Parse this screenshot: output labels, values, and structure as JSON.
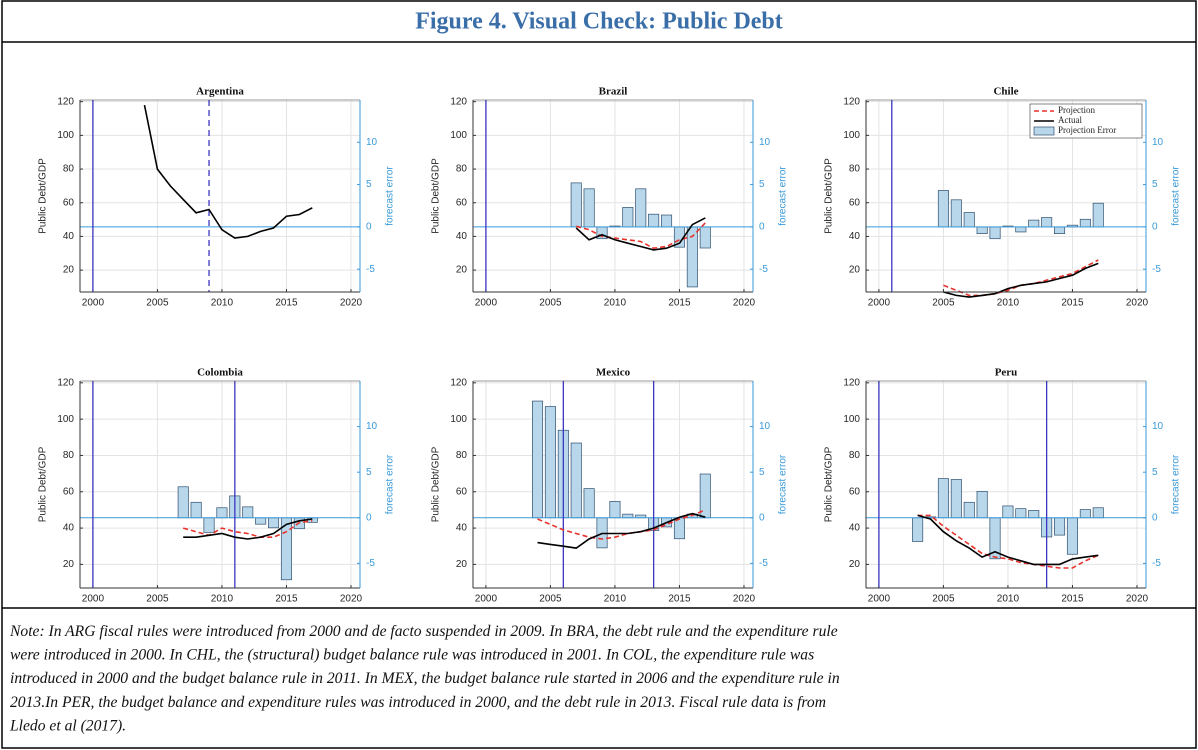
{
  "header": {
    "title": "Figure 4. Visual Check: Public Debt"
  },
  "note": [
    "Note: In ARG fiscal rules were introduced from 2000 and de facto suspended in 2009. In BRA, the debt rule and the expenditure rule",
    "were introduced in 2000. In CHL, the (structural) budget balance rule was introduced in 2001. In COL, the expenditure rule was",
    "introduced in 2000 and the budget balance rule in 2011. In MEX, the budget balance rule started in 2006 and the expenditure rule in",
    "2013.In PER, the budget balance and expenditure rules was introduced in 2000, and the debt rule in 2013. Fiscal rule data is from",
    "Lledo et al (2017)."
  ],
  "chart_data": [
    {
      "type": "line",
      "title": "Argentina",
      "ylabel": "Public Debt/GDP",
      "y2label": "forecast error",
      "xlim": [
        1999,
        2020.7
      ],
      "xticks": [
        2000,
        2005,
        2010,
        2015,
        2020
      ],
      "ylim": [
        7,
        121
      ],
      "yticks": [
        20,
        40,
        60,
        80,
        100,
        120
      ],
      "y2lim": [
        -7.7,
        15
      ],
      "y2ticks": [
        -5,
        0,
        5,
        10
      ],
      "grid": true,
      "vlines": [
        {
          "x": 2000,
          "dashed": false
        },
        {
          "x": 2009,
          "dashed": true
        }
      ],
      "series": [
        {
          "color": "#000000",
          "style": "solid",
          "x": [
            2004,
            2005,
            2006,
            2007,
            2008,
            2009,
            2010,
            2011,
            2012,
            2013,
            2014,
            2015,
            2016,
            2017
          ],
          "values": [
            118,
            80,
            70,
            62,
            54,
            56,
            44,
            39,
            40,
            43,
            45,
            52,
            53,
            57
          ]
        }
      ]
    },
    {
      "type": "line",
      "title": "Brazil",
      "ylabel": "Public Debt/GDP",
      "y2label": "forecast error",
      "xlim": [
        1999,
        2020.7
      ],
      "xticks": [
        2000,
        2005,
        2010,
        2015,
        2020
      ],
      "ylim": [
        7,
        121
      ],
      "yticks": [
        20,
        40,
        60,
        80,
        100,
        120
      ],
      "y2lim": [
        -7.7,
        15
      ],
      "y2ticks": [
        -5,
        0,
        5,
        10
      ],
      "grid": true,
      "vlines": [
        {
          "x": 2000,
          "dashed": false
        }
      ],
      "series": [
        {
          "color": "#e8322c",
          "style": "dashed",
          "x": [
            2007,
            2008,
            2009,
            2010,
            2011,
            2012,
            2013,
            2014,
            2015,
            2016,
            2017
          ],
          "values": [
            46,
            44,
            40,
            39,
            38,
            37,
            33,
            34,
            38,
            40,
            48
          ]
        },
        {
          "color": "#000000",
          "style": "solid",
          "x": [
            2007,
            2008,
            2009,
            2010,
            2011,
            2012,
            2013,
            2014,
            2015,
            2016,
            2017
          ],
          "values": [
            45,
            38,
            41,
            38,
            36,
            34,
            32,
            33,
            36,
            47,
            51
          ]
        },
        {
          "color": "#b8d7ea",
          "style": "bar",
          "axis": "y2",
          "x": [
            2007,
            2008,
            2009,
            2010,
            2011,
            2012,
            2013,
            2014,
            2015,
            2016,
            2017
          ],
          "values": [
            5.2,
            4.5,
            -1.4,
            0.1,
            2.3,
            4.5,
            1.5,
            1.4,
            -2.4,
            -7.1,
            -2.5
          ]
        }
      ]
    },
    {
      "type": "line",
      "title": "Chile",
      "ylabel": "Public Debt/GDP",
      "y2label": "forecast error",
      "xlim": [
        1999,
        2020.7
      ],
      "xticks": [
        2000,
        2005,
        2010,
        2015,
        2020
      ],
      "ylim": [
        7,
        121
      ],
      "yticks": [
        20,
        40,
        60,
        80,
        100,
        120
      ],
      "y2lim": [
        -7.7,
        15
      ],
      "y2ticks": [
        -5,
        0,
        5,
        10
      ],
      "grid": true,
      "legend": "upper right",
      "vlines": [
        {
          "x": 2001,
          "dashed": false
        }
      ],
      "series": [
        {
          "name": "Projection",
          "color": "#e8322c",
          "style": "dashed",
          "x": [
            2005,
            2006,
            2007,
            2008,
            2009,
            2010,
            2011,
            2012,
            2013,
            2014,
            2015,
            2016,
            2017
          ],
          "values": [
            11,
            8,
            5,
            5,
            6,
            8,
            11,
            12,
            14,
            16,
            18,
            22,
            26
          ]
        },
        {
          "name": "Actual",
          "color": "#000000",
          "style": "solid",
          "x": [
            2005,
            2006,
            2007,
            2008,
            2009,
            2010,
            2011,
            2012,
            2013,
            2014,
            2015,
            2016,
            2017
          ],
          "values": [
            7,
            5,
            4,
            5,
            6,
            9,
            11,
            12,
            13,
            15,
            17,
            21,
            24
          ]
        },
        {
          "name": "Projection Error",
          "color": "#b8d7ea",
          "style": "bar",
          "axis": "y2",
          "x": [
            2005,
            2006,
            2007,
            2008,
            2009,
            2010,
            2011,
            2012,
            2013,
            2014,
            2015,
            2016,
            2017
          ],
          "values": [
            4.3,
            3.2,
            1.7,
            -0.8,
            -1.4,
            0.1,
            -0.6,
            0.8,
            1.1,
            -0.8,
            0.2,
            0.9,
            2.8
          ]
        }
      ]
    },
    {
      "type": "line",
      "title": "Colombia",
      "ylabel": "Public Debt/GDP",
      "y2label": "forecast error",
      "xlim": [
        1999,
        2020.7
      ],
      "xticks": [
        2000,
        2005,
        2010,
        2015,
        2020
      ],
      "ylim": [
        7,
        121
      ],
      "yticks": [
        20,
        40,
        60,
        80,
        100,
        120
      ],
      "y2lim": [
        -7.7,
        15
      ],
      "y2ticks": [
        -5,
        0,
        5,
        10
      ],
      "grid": true,
      "vlines": [
        {
          "x": 2000,
          "dashed": false
        },
        {
          "x": 2011,
          "dashed": false
        }
      ],
      "series": [
        {
          "color": "#e8322c",
          "style": "dashed",
          "x": [
            2007,
            2008,
            2009,
            2010,
            2011,
            2012,
            2013,
            2014,
            2015,
            2016,
            2017
          ],
          "values": [
            40,
            38,
            36,
            40,
            38,
            37,
            35,
            35,
            38,
            43,
            44
          ]
        },
        {
          "color": "#000000",
          "style": "solid",
          "x": [
            2007,
            2008,
            2009,
            2010,
            2011,
            2012,
            2013,
            2014,
            2015,
            2016,
            2017
          ],
          "values": [
            35,
            35,
            36,
            37,
            35,
            34,
            35,
            37,
            42,
            44,
            45
          ]
        },
        {
          "color": "#b8d7ea",
          "style": "bar",
          "axis": "y2",
          "x": [
            2007,
            2008,
            2009,
            2010,
            2011,
            2012,
            2013,
            2014,
            2015,
            2016,
            2017
          ],
          "values": [
            3.4,
            1.7,
            -1.6,
            1.1,
            2.4,
            1.2,
            -0.7,
            -1.1,
            -6.8,
            -1.2,
            -0.5
          ]
        }
      ]
    },
    {
      "type": "line",
      "title": "Mexico",
      "ylabel": "Public Debt/GDP",
      "y2label": "forecast error",
      "xlim": [
        1999,
        2020.7
      ],
      "xticks": [
        2000,
        2005,
        2010,
        2015,
        2020
      ],
      "ylim": [
        7,
        121
      ],
      "yticks": [
        20,
        40,
        60,
        80,
        100,
        120
      ],
      "y2lim": [
        -7.7,
        15
      ],
      "y2ticks": [
        -5,
        0,
        5,
        10
      ],
      "grid": true,
      "vlines": [
        {
          "x": 2006,
          "dashed": false
        },
        {
          "x": 2013,
          "dashed": false
        }
      ],
      "series": [
        {
          "color": "#e8322c",
          "style": "dashed",
          "x": [
            2004,
            2005,
            2006,
            2007,
            2008,
            2009,
            2010,
            2011,
            2012,
            2013,
            2014,
            2015,
            2016,
            2017
          ],
          "values": [
            45,
            42,
            39,
            37,
            35,
            34,
            35,
            37,
            38,
            39,
            42,
            45,
            47,
            50
          ]
        },
        {
          "color": "#000000",
          "style": "solid",
          "x": [
            2004,
            2005,
            2006,
            2007,
            2008,
            2009,
            2010,
            2011,
            2012,
            2013,
            2014,
            2015,
            2016,
            2017
          ],
          "values": [
            32,
            31,
            30,
            29,
            34,
            37,
            37,
            37,
            38,
            40,
            43,
            46,
            48,
            46
          ]
        },
        {
          "color": "#b8d7ea",
          "style": "bar",
          "axis": "y2",
          "x": [
            2004,
            2005,
            2006,
            2007,
            2008,
            2009,
            2010,
            2011,
            2012,
            2013,
            2014,
            2015,
            2016,
            2017
          ],
          "values": [
            12.8,
            12.2,
            9.6,
            8.2,
            3.2,
            -3.3,
            1.8,
            0.4,
            0.3,
            -1.4,
            -1.0,
            -2.3,
            0.4,
            4.8
          ]
        }
      ]
    },
    {
      "type": "line",
      "title": "Peru",
      "ylabel": "Public Debt/GDP",
      "y2label": "forecast error",
      "xlim": [
        1999,
        2020.7
      ],
      "xticks": [
        2000,
        2005,
        2010,
        2015,
        2020
      ],
      "ylim": [
        7,
        121
      ],
      "yticks": [
        20,
        40,
        60,
        80,
        100,
        120
      ],
      "y2lim": [
        -7.7,
        15
      ],
      "y2ticks": [
        -5,
        0,
        5,
        10
      ],
      "grid": true,
      "vlines": [
        {
          "x": 2000,
          "dashed": false
        },
        {
          "x": 2013,
          "dashed": false
        }
      ],
      "series": [
        {
          "color": "#e8322c",
          "style": "dashed",
          "x": [
            2003,
            2004,
            2005,
            2006,
            2007,
            2008,
            2009,
            2010,
            2011,
            2012,
            2013,
            2014,
            2015,
            2016,
            2017
          ],
          "values": [
            47,
            47,
            41,
            36,
            31,
            26,
            24,
            23,
            21,
            20,
            19,
            18,
            18,
            22,
            25
          ]
        },
        {
          "color": "#000000",
          "style": "solid",
          "x": [
            2003,
            2004,
            2005,
            2006,
            2007,
            2008,
            2009,
            2010,
            2011,
            2012,
            2013,
            2014,
            2015,
            2016,
            2017
          ],
          "values": [
            47,
            45,
            38,
            33,
            29,
            24,
            27,
            24,
            22,
            20,
            20,
            20,
            23,
            24,
            25
          ]
        },
        {
          "color": "#b8d7ea",
          "style": "bar",
          "axis": "y2",
          "x": [
            2003,
            2004,
            2005,
            2006,
            2007,
            2008,
            2009,
            2010,
            2011,
            2012,
            2013,
            2014,
            2015,
            2016,
            2017
          ],
          "values": [
            -2.6,
            0.1,
            4.3,
            4.2,
            1.7,
            2.9,
            -4.5,
            1.3,
            1.0,
            0.8,
            -2.1,
            -1.9,
            -4.0,
            0.9,
            1.1
          ]
        }
      ]
    }
  ]
}
